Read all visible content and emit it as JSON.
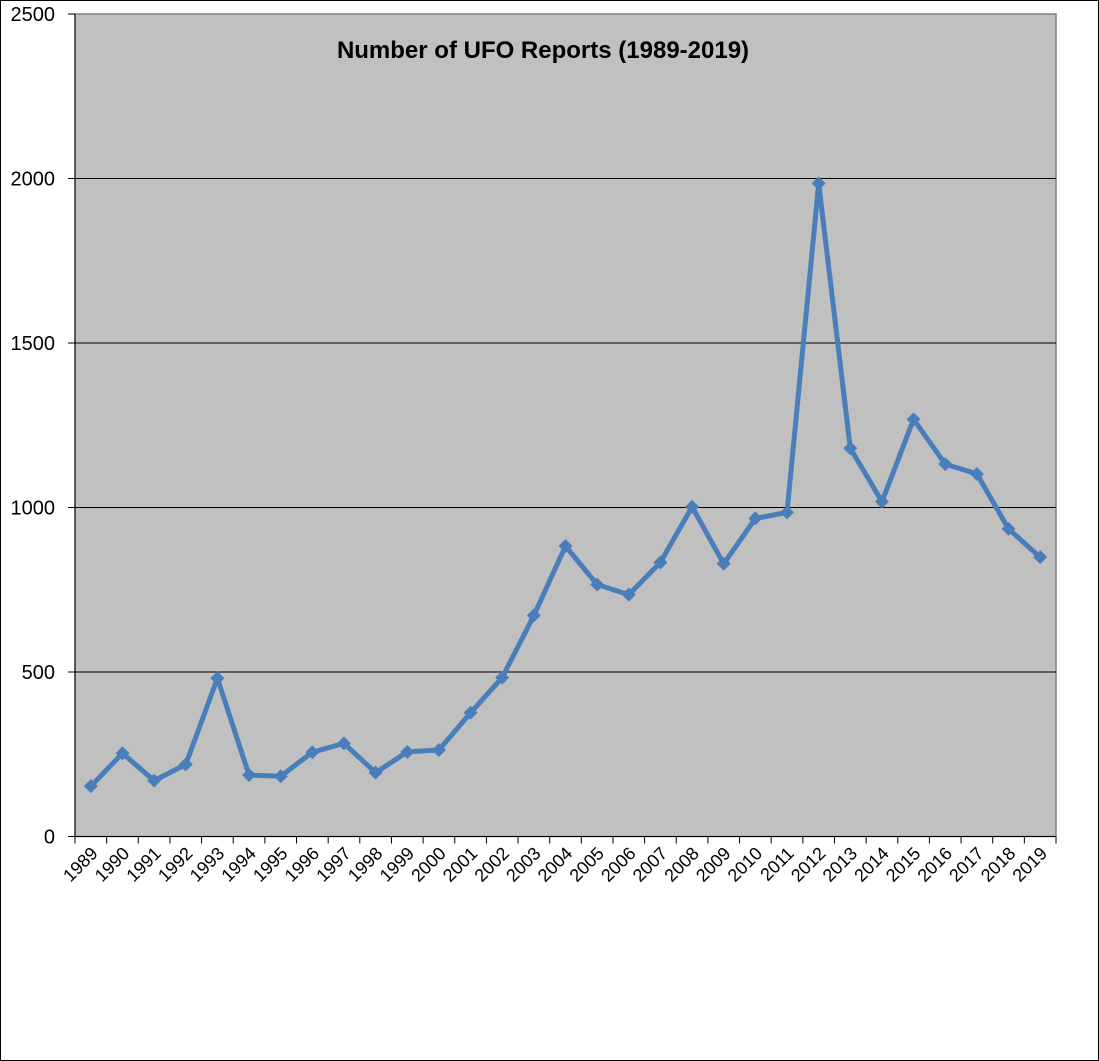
{
  "chart_data": {
    "type": "line",
    "title": "Number of UFO Reports (1989-2019)",
    "xlabel": "",
    "ylabel": "",
    "ylim": [
      0,
      2500
    ],
    "yticks": [
      0,
      500,
      1000,
      1500,
      2000,
      2500
    ],
    "grid": true,
    "legend": null,
    "categories": [
      "1989",
      "1990",
      "1991",
      "1992",
      "1993",
      "1994",
      "1995",
      "1996",
      "1997",
      "1998",
      "1999",
      "2000",
      "2001",
      "2002",
      "2003",
      "2004",
      "2005",
      "2006",
      "2007",
      "2008",
      "2009",
      "2010",
      "2011",
      "2012",
      "2013",
      "2014",
      "2015",
      "2016",
      "2017",
      "2018",
      "2019"
    ],
    "series": [
      {
        "name": "UFO Reports",
        "color": "#4a7ebb",
        "marker": "diamond",
        "values": [
          153,
          253,
          170,
          219,
          481,
          187,
          183,
          256,
          283,
          194,
          257,
          263,
          376,
          483,
          672,
          883,
          766,
          735,
          833,
          1002,
          829,
          967,
          985,
          1985,
          1180,
          1018,
          1268,
          1132,
          1102,
          935,
          849
        ]
      }
    ]
  },
  "style": {
    "plot_bg": "#c0c0c0",
    "grid_color": "#000000",
    "line_color": "#4a7ebb"
  }
}
